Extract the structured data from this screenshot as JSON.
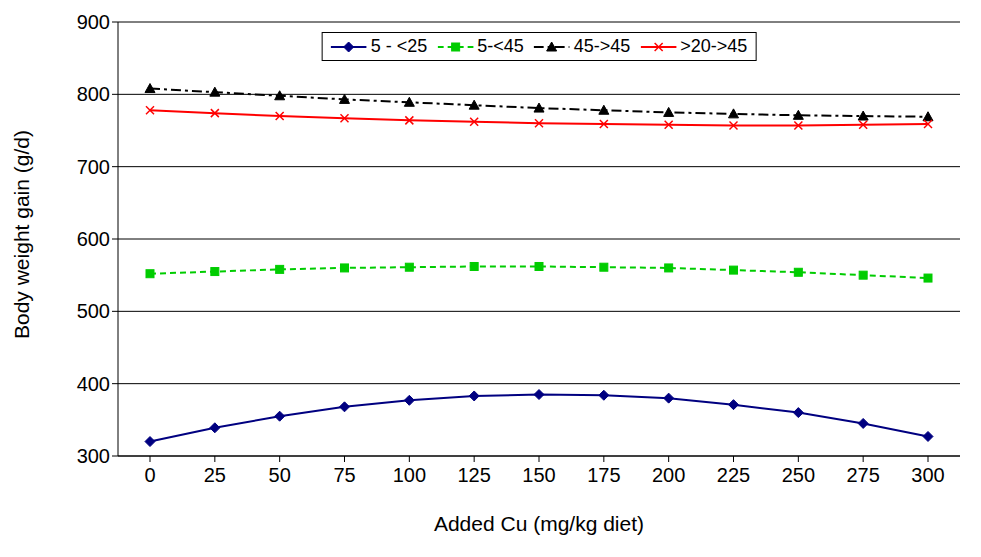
{
  "chart_data": {
    "type": "line",
    "x_label": "Added Cu (mg/kg diet)",
    "y_label": "Body weight gain (g/d)",
    "categories": [
      "0",
      "25",
      "50",
      "75",
      "100",
      "125",
      "150",
      "175",
      "200",
      "225",
      "250",
      "275",
      "300"
    ],
    "series": [
      {
        "name": "5 - <25",
        "color": "#000080",
        "marker": "diamond",
        "line_style": "solid",
        "values": [
          320,
          339,
          355,
          368,
          377,
          383,
          385,
          384,
          380,
          371,
          360,
          345,
          327
        ]
      },
      {
        "name": "5-<45",
        "color": "#00cc00",
        "marker": "square",
        "line_style": "dashed",
        "values": [
          552,
          555,
          558,
          560,
          561,
          562,
          562,
          561,
          560,
          557,
          554,
          550,
          546
        ]
      },
      {
        "name": "45->45",
        "color": "#000000",
        "marker": "triangle",
        "line_style": "dashdot",
        "values": [
          808,
          803,
          798,
          793,
          789,
          785,
          781,
          778,
          775,
          773,
          771,
          770,
          769
        ]
      },
      {
        "name": ">20->45",
        "color": "#ff0000",
        "marker": "x",
        "line_style": "solid",
        "values": [
          778,
          774,
          770,
          767,
          764,
          762,
          760,
          759,
          758,
          757,
          757,
          758,
          759
        ]
      }
    ],
    "ylim": [
      300,
      900
    ],
    "yticks": [
      300,
      400,
      500,
      600,
      700,
      800,
      900
    ],
    "grid": true,
    "legend": "top"
  }
}
